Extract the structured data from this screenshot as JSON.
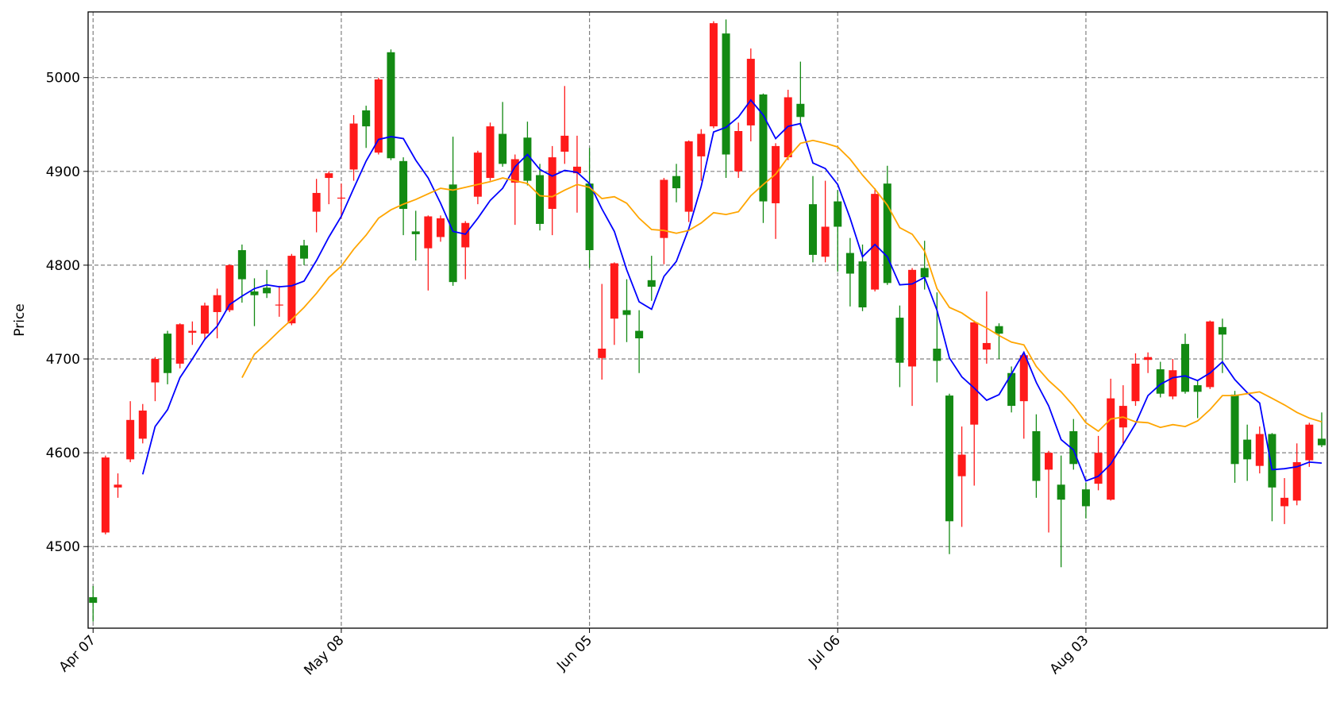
{
  "chart_data": {
    "type": "candlestick",
    "ylabel": "Price",
    "categories": [
      "Apr 07",
      null,
      null,
      null,
      null,
      null,
      null,
      null,
      null,
      null,
      null,
      null,
      null,
      null,
      null,
      null,
      null,
      null,
      null,
      null,
      "May 08",
      null,
      null,
      null,
      null,
      null,
      null,
      null,
      null,
      null,
      null,
      null,
      null,
      null,
      null,
      null,
      null,
      null,
      null,
      null,
      "Jun 05",
      null,
      null,
      null,
      null,
      null,
      null,
      null,
      null,
      null,
      null,
      null,
      null,
      null,
      null,
      null,
      null,
      null,
      null,
      null,
      "Jul 06",
      null,
      null,
      null,
      null,
      null,
      null,
      null,
      null,
      null,
      null,
      null,
      null,
      null,
      null,
      null,
      null,
      null,
      null,
      null,
      "Aug 03",
      null,
      null,
      null,
      null,
      null,
      null,
      null,
      null,
      null,
      null,
      null,
      null,
      null,
      null,
      null,
      null,
      null,
      null,
      null
    ],
    "open": [
      4446,
      4515,
      4563,
      4593,
      4615,
      4675,
      4727,
      4695,
      4728,
      4727,
      4750,
      4752,
      4816,
      4772,
      4776,
      4757,
      4738,
      4821,
      4857,
      4893,
      4871,
      4902,
      4965,
      4920,
      5027,
      4911,
      4836,
      4818,
      4830,
      4886,
      4819,
      4873,
      4893,
      4940,
      4888,
      4936,
      4896,
      4860,
      4921,
      4898,
      4887,
      4701,
      4743,
      4752,
      4730,
      4784,
      4829,
      4895,
      4857,
      4916,
      4948,
      5047,
      4900,
      4949,
      4982,
      4866,
      4915,
      4972,
      4865,
      4809,
      4868,
      4813,
      4804,
      4774,
      4887,
      4744,
      4692,
      4797,
      4711,
      4661,
      4575,
      4630,
      4710,
      4735,
      4685,
      4655,
      4623,
      4582,
      4566,
      4623,
      4561,
      4567,
      4550,
      4627,
      4655,
      4699,
      4689,
      4660,
      4716,
      4672,
      4670,
      4734,
      4662,
      4614,
      4586,
      4620,
      4543,
      4549,
      4592,
      4615
    ],
    "high": [
      4458,
      4597,
      4578,
      4655,
      4652,
      4702,
      4730,
      4738,
      4740,
      4760,
      4775,
      4801,
      4822,
      4786,
      4795,
      4778,
      4812,
      4827,
      4892,
      4900,
      4887,
      4960,
      4970,
      5000,
      5030,
      4915,
      4858,
      4853,
      4853,
      4937,
      4847,
      4922,
      4952,
      4974,
      4918,
      4953,
      4908,
      4927,
      4991,
      4938,
      4925,
      4780,
      4803,
      4785,
      4752,
      4810,
      4893,
      4908,
      4933,
      4945,
      5060,
      5062,
      4952,
      5031,
      4983,
      4930,
      4987,
      5017,
      4895,
      4890,
      4880,
      4829,
      4822,
      4882,
      4906,
      4757,
      4797,
      4826,
      4771,
      4663,
      4628,
      4741,
      4772,
      4738,
      4692,
      4707,
      4641,
      4602,
      4597,
      4636,
      4568,
      4618,
      4679,
      4672,
      4706,
      4707,
      4697,
      4700,
      4727,
      4677,
      4741,
      4743,
      4666,
      4630,
      4628,
      4621,
      4573,
      4610,
      4632,
      4643
    ],
    "low": [
      4420,
      4513,
      4552,
      4590,
      4610,
      4655,
      4673,
      4690,
      4715,
      4720,
      4722,
      4750,
      4760,
      4735,
      4765,
      4745,
      4736,
      4800,
      4835,
      4865,
      4850,
      4890,
      4925,
      4918,
      4912,
      4832,
      4805,
      4773,
      4825,
      4778,
      4785,
      4865,
      4890,
      4905,
      4843,
      4885,
      4837,
      4832,
      4908,
      4856,
      4797,
      4678,
      4715,
      4718,
      4685,
      4762,
      4801,
      4867,
      4846,
      4890,
      4946,
      4893,
      4893,
      4932,
      4845,
      4828,
      4912,
      4948,
      4803,
      4803,
      4793,
      4756,
      4751,
      4772,
      4779,
      4670,
      4650,
      4774,
      4675,
      4492,
      4521,
      4565,
      4695,
      4700,
      4643,
      4615,
      4552,
      4515,
      4478,
      4582,
      4530,
      4560,
      4549,
      4610,
      4650,
      4685,
      4659,
      4657,
      4663,
      4637,
      4668,
      4685,
      4568,
      4570,
      4578,
      4527,
      4524,
      4544,
      4585,
      4606
    ],
    "close": [
      4440,
      4595,
      4566,
      4635,
      4645,
      4700,
      4685,
      4737,
      4730,
      4757,
      4768,
      4800,
      4785,
      4768,
      4770,
      4758,
      4810,
      4807,
      4877,
      4898,
      4872,
      4951,
      4948,
      4998,
      4914,
      4860,
      4833,
      4852,
      4850,
      4782,
      4845,
      4920,
      4948,
      4908,
      4913,
      4890,
      4844,
      4915,
      4938,
      4905,
      4816,
      4711,
      4802,
      4747,
      4722,
      4777,
      4891,
      4882,
      4932,
      4940,
      5058,
      4918,
      4943,
      5020,
      4868,
      4927,
      4979,
      4958,
      4811,
      4841,
      4841,
      4791,
      4755,
      4876,
      4781,
      4696,
      4795,
      4787,
      4698,
      4527,
      4598,
      4739,
      4717,
      4727,
      4650,
      4704,
      4570,
      4600,
      4550,
      4588,
      4543,
      4600,
      4658,
      4650,
      4695,
      4702,
      4663,
      4688,
      4665,
      4665,
      4740,
      4726,
      4588,
      4593,
      4620,
      4563,
      4552,
      4590,
      4630,
      4608
    ],
    "up_color": "#ff1a1a",
    "down_color": "#138a13",
    "lines": [
      {
        "color": "blue",
        "values": [
          null,
          null,
          null,
          null,
          4577,
          4628,
          4646,
          4680,
          4700,
          4721,
          4735,
          4758,
          4767,
          4775,
          4779,
          4777,
          4778,
          4783,
          4805,
          4830,
          4852,
          4882,
          4911,
          4934,
          4937,
          4935,
          4912,
          4893,
          4866,
          4836,
          4833,
          4850,
          4869,
          4882,
          4905,
          4918,
          4902,
          4895,
          4901,
          4899,
          4887,
          4860,
          4836,
          4795,
          4761,
          4753,
          4788,
          4804,
          4839,
          4884,
          4942,
          4947,
          4958,
          4976,
          4960,
          4935,
          4948,
          4951,
          4909,
          4903,
          4886,
          4850,
          4809,
          4822,
          4809,
          4779,
          4780,
          4787,
          4752,
          4701,
          4681,
          4669,
          4656,
          4662,
          4684,
          4707,
          4675,
          4650,
          4614,
          4603,
          4570,
          4575,
          4588,
          4609,
          4631,
          4661,
          4673,
          4680,
          4682,
          4677,
          4685,
          4697,
          4678,
          4664,
          4653,
          4582,
          4583,
          4585,
          4590,
          4589
        ]
      },
      {
        "color": "orange",
        "values": [
          null,
          null,
          null,
          null,
          null,
          null,
          null,
          null,
          null,
          null,
          null,
          null,
          4680,
          4705,
          4717,
          4730,
          4742,
          4755,
          4770,
          4787,
          4799,
          4817,
          4832,
          4850,
          4859,
          4865,
          4870,
          4876,
          4882,
          4880,
          4883,
          4886,
          4889,
          4893,
          4890,
          4887,
          4874,
          4873,
          4880,
          4886,
          4883,
          4871,
          4873,
          4866,
          4850,
          4838,
          4837,
          4834,
          4837,
          4845,
          4856,
          4854,
          4857,
          4874,
          4886,
          4897,
          4915,
          4930,
          4933,
          4930,
          4926,
          4913,
          4896,
          4881,
          4864,
          4840,
          4833,
          4815,
          4775,
          4755,
          4749,
          4740,
          4733,
          4725,
          4718,
          4715,
          4692,
          4677,
          4665,
          4650,
          4632,
          4623,
          4636,
          4638,
          4633,
          4632,
          4627,
          4630,
          4628,
          4634,
          4646,
          4661,
          4661,
          4663,
          4665,
          4658,
          4651,
          4643,
          4637,
          4633
        ]
      }
    ],
    "xlim": [
      -0.4,
      99.45
    ],
    "ylim": [
      4413,
      5070
    ],
    "yticks": [
      4500,
      4600,
      4700,
      4800,
      4900,
      5000
    ],
    "grid": true
  }
}
